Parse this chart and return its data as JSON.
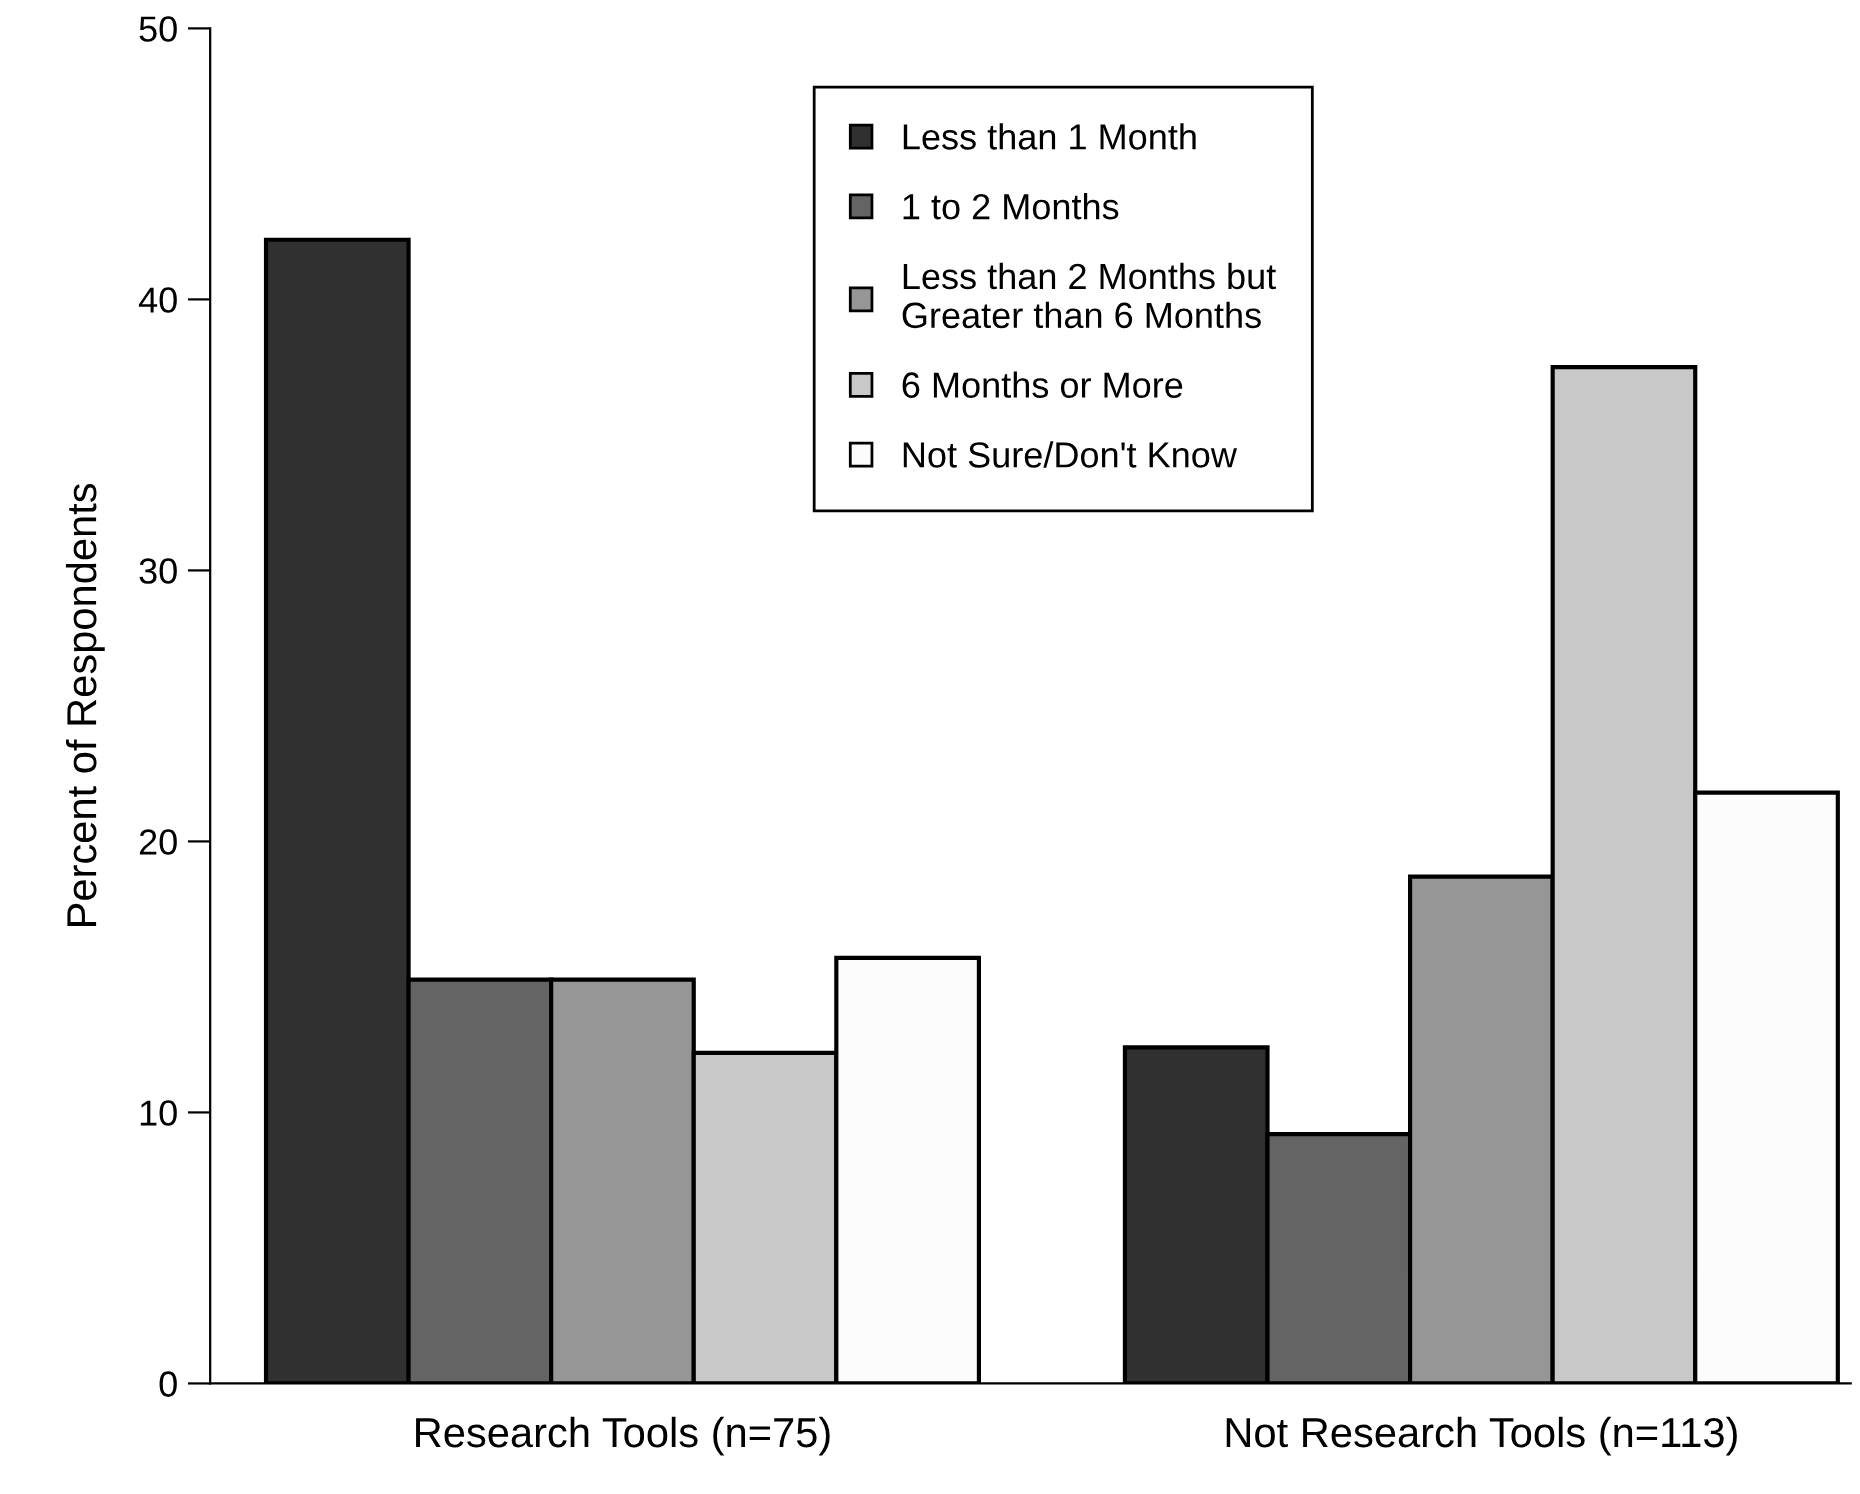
{
  "chart_data": {
    "type": "bar",
    "ylabel": "Percent of Respondents",
    "categories": [
      "Research Tools (n=75)",
      "Not Research Tools (n=113)"
    ],
    "series": [
      {
        "name": "Less than 1 Month",
        "color": "#303030",
        "values": [
          42.2,
          12.4
        ]
      },
      {
        "name": "1 to 2 Months",
        "color": "#646464",
        "values": [
          14.9,
          9.2
        ]
      },
      {
        "name": "Less than 2 Months but\nGreater than 6 Months",
        "color": "#969696",
        "values": [
          14.9,
          18.7
        ]
      },
      {
        "name": "6 Months or More",
        "color": "#c8c8c8",
        "values": [
          12.2,
          37.5
        ]
      },
      {
        "name": "Not Sure/Don't Know",
        "color": "#fcfcfc",
        "values": [
          15.7,
          21.8
        ]
      }
    ],
    "ylim": [
      0,
      50
    ],
    "yticks": [
      0,
      10,
      20,
      30,
      40,
      50
    ],
    "grid": false,
    "legend": "top"
  }
}
